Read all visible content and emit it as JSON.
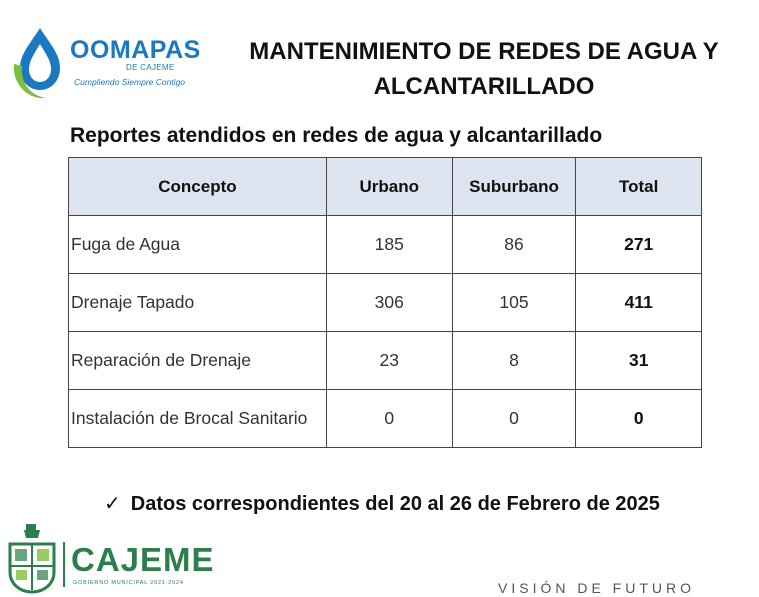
{
  "logos": {
    "top_name": "OOMAPAS",
    "top_sub": "DE CAJEME",
    "top_tagline": "Cumpliendo Siempre Contigo",
    "bottom_name": "CAJEME",
    "bottom_sub": "GOBIERNO MUNICIPAL 2021-2024"
  },
  "title": {
    "line1": "MANTENIMIENTO DE REDES DE AGUA Y",
    "line2": "ALCANTARILLADO"
  },
  "subtitle": "Reportes atendidos en redes de agua y alcantarillado",
  "table": {
    "headers": [
      "Concepto",
      "Urbano",
      "Suburbano",
      "Total"
    ],
    "rows": [
      {
        "concepto": "Fuga de Agua",
        "urbano": "185",
        "suburbano": "86",
        "total": "271"
      },
      {
        "concepto": "Drenaje Tapado",
        "urbano": "306",
        "suburbano": "105",
        "total": "411"
      },
      {
        "concepto": "Reparación de Drenaje",
        "urbano": "23",
        "suburbano": "8",
        "total": "31"
      },
      {
        "concepto": "Instalación de Brocal Sanitario",
        "urbano": "0",
        "suburbano": "0",
        "total": "0"
      }
    ]
  },
  "footnote": {
    "check": "✓",
    "text": "Datos correspondientes del 20 al 26 de Febrero de 2025"
  },
  "slogan": "VISIÓN DE FUTURO",
  "colors": {
    "brand_blue": "#1c78bf",
    "brand_green": "#2a7f4a",
    "header_fill": "#dde3ef"
  }
}
